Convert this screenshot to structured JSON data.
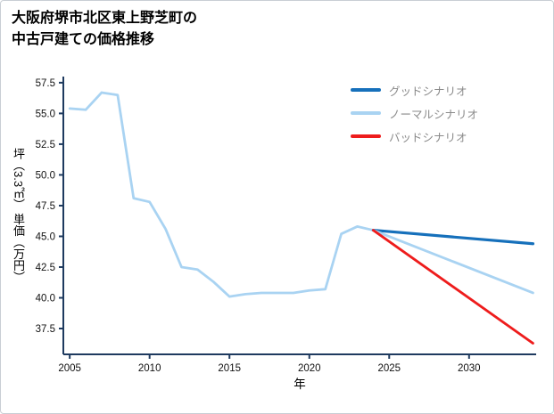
{
  "chart_data": {
    "type": "line",
    "title_lines": [
      "大阪府堺市北区東上野芝町の",
      "中古戸建ての価格推移"
    ],
    "xlabel": "年",
    "ylabel": "坪（3.3㎡） 単価（万円）",
    "xlim": [
      2004.6,
      2034.2
    ],
    "ylim": [
      35.4,
      58.0
    ],
    "xticks": [
      2005,
      2010,
      2015,
      2020,
      2025,
      2030
    ],
    "yticks": [
      37.5,
      40.0,
      42.5,
      45.0,
      47.5,
      50.0,
      52.5,
      55.0,
      57.5
    ],
    "grid": false,
    "legend_position": "top-right",
    "colors": {
      "axis": "#1e3a5f",
      "tick_text": "#111111",
      "good": "#1670bb",
      "normal": "#a9d3f2",
      "bad": "#ee1c1c"
    },
    "series": [
      {
        "name": "history",
        "color": "#a9d3f2",
        "in_legend": false,
        "x": [
          2005,
          2006,
          2007,
          2008,
          2009,
          2010,
          2011,
          2012,
          2013,
          2014,
          2015,
          2016,
          2017,
          2018,
          2019,
          2020,
          2021,
          2022,
          2023,
          2024
        ],
        "y": [
          55.4,
          55.3,
          56.7,
          56.5,
          48.1,
          47.8,
          45.6,
          42.5,
          42.3,
          41.3,
          40.1,
          40.3,
          40.4,
          40.4,
          40.4,
          40.6,
          40.7,
          45.2,
          45.8,
          45.5
        ]
      },
      {
        "name": "グッドシナリオ",
        "color": "#1670bb",
        "in_legend": true,
        "x": [
          2024,
          2034
        ],
        "y": [
          45.5,
          44.4
        ]
      },
      {
        "name": "ノーマルシナリオ",
        "color": "#a9d3f2",
        "in_legend": true,
        "x": [
          2024,
          2034
        ],
        "y": [
          45.5,
          40.4
        ]
      },
      {
        "name": "バッドシナリオ",
        "color": "#ee1c1c",
        "in_legend": true,
        "x": [
          2024,
          2034
        ],
        "y": [
          45.5,
          36.3
        ]
      }
    ]
  }
}
